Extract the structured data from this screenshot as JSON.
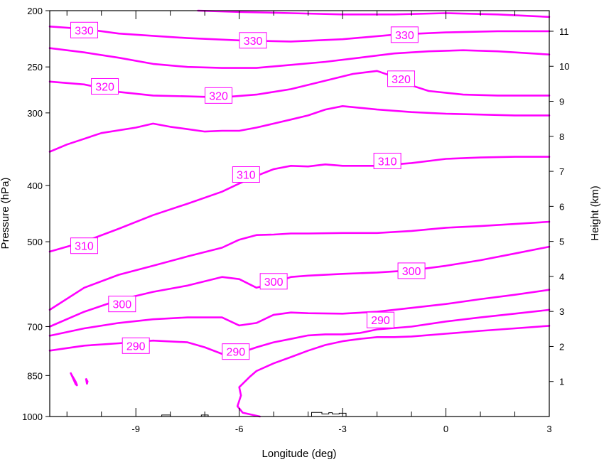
{
  "chart_data": {
    "type": "line",
    "title": "",
    "xlabel": "Longitude (deg)",
    "ylabel": "Pressure (hPa)",
    "y2label": "Height (km)",
    "xlim": [
      -11.5,
      3.0
    ],
    "ylim": [
      1000,
      200
    ],
    "yscale": "log",
    "x_ticks": [
      -9,
      -6,
      -3,
      0,
      3
    ],
    "x_tick_labels": [
      "-9",
      "-6",
      "-3",
      "0",
      "3"
    ],
    "y_ticks": [
      200,
      250,
      300,
      400,
      500,
      700,
      850,
      1000
    ],
    "y_tick_labels": [
      "200",
      "250",
      "300",
      "400",
      "500",
      "700",
      "850",
      "1000"
    ],
    "y2_ticks_km": [
      1,
      2,
      3,
      4,
      5,
      6,
      7,
      8,
      9,
      10,
      11
    ],
    "y2_tick_labels": [
      "1",
      "2",
      "3",
      "4",
      "5",
      "6",
      "7",
      "8",
      "9",
      "10",
      "11"
    ],
    "line_color": "#ff00ff",
    "terrain_color": "#000000",
    "grid": false,
    "series": [
      {
        "level": 330,
        "x": [
          -7.2,
          -6,
          -4.5,
          -3,
          -1.5,
          0,
          1.5,
          3
        ],
        "y": [
          200,
          201,
          202,
          203,
          203,
          202,
          203,
          205
        ]
      },
      {
        "level": 330,
        "x": [
          -11.5,
          -10.5,
          -9.5,
          -8.5,
          -7.5,
          -6,
          -4.5,
          -3,
          -1.5,
          0,
          1.5,
          3
        ],
        "y": [
          213,
          215,
          219,
          221,
          223,
          225,
          226,
          224,
          220,
          218,
          217,
          217
        ]
      },
      {
        "level": 330,
        "x": [
          -11.5,
          -10.5,
          -9.5,
          -8.5,
          -7.5,
          -6.5,
          -5.5,
          -4.5,
          -3.5,
          -2.5,
          -1.5,
          -0.5,
          0.5,
          1.5,
          3
        ],
        "y": [
          232,
          236,
          241,
          247,
          250,
          251,
          251,
          248,
          245,
          241,
          237,
          235,
          234,
          235,
          238
        ]
      },
      {
        "level": 320,
        "x": [
          -11.5,
          -10.5,
          -9.5,
          -8.5,
          -7.5,
          -6.5,
          -5.5,
          -4.5,
          -3.5,
          -2.7,
          -2.0,
          -1.5,
          -1.0,
          -0.5,
          0.5,
          1.5,
          3
        ],
        "y": [
          265,
          268,
          276,
          280,
          281,
          282,
          279,
          273,
          264,
          257,
          254,
          260,
          269,
          275,
          279,
          280,
          280
        ]
      },
      {
        "level": 320,
        "x": [
          -11.5,
          -11.0,
          -10.0,
          -9.0,
          -8.5,
          -8.0,
          -7.5,
          -7.0,
          -6.5,
          -6.0,
          -5.5,
          -5.0,
          -4.5,
          -4.0,
          -3.5,
          -3.0,
          -2.5,
          -2.0,
          -1.0,
          0,
          1.0,
          2.0,
          3.0
        ],
        "y": [
          350,
          340,
          325,
          318,
          313,
          317,
          320,
          323,
          322,
          322,
          318,
          313,
          308,
          303,
          296,
          292,
          294,
          296,
          299,
          301,
          302,
          303,
          303
        ]
      },
      {
        "level": 310,
        "x": [
          -11.5,
          -10.5,
          -9.5,
          -8.5,
          -7.5,
          -6.5,
          -6.0,
          -5.5,
          -5.0,
          -4.5,
          -4.0,
          -3.5,
          -3.0,
          -2.0,
          -1.0,
          0,
          1.0,
          2.0,
          3.0
        ],
        "y": [
          520,
          500,
          475,
          450,
          430,
          410,
          397,
          385,
          375,
          370,
          371,
          368,
          370,
          370,
          366,
          360,
          358,
          357,
          357
        ]
      },
      {
        "level": 310,
        "x": [
          -11.5,
          -10.5,
          -9.5,
          -8.5,
          -7.5,
          -6.5,
          -6.0,
          -5.5,
          -5.0,
          -4.5,
          -4.0,
          -3.0,
          -2.0,
          -1.0,
          0,
          1.0,
          2.0,
          3.0
        ],
        "y": [
          655,
          600,
          570,
          550,
          530,
          512,
          496,
          487,
          486,
          484,
          484,
          483,
          483,
          479,
          473,
          470,
          466,
          462
        ]
      },
      {
        "level": 300,
        "x": [
          -11.5,
          -10.5,
          -9.5,
          -8.5,
          -7.5,
          -6.5,
          -6.0,
          -5.5,
          -5.0,
          -4.5,
          -4.0,
          -3.0,
          -2.0,
          -1.0,
          0,
          1.0,
          2.0,
          3.0
        ],
        "y": [
          700,
          660,
          630,
          610,
          595,
          575,
          580,
          600,
          590,
          575,
          572,
          568,
          565,
          560,
          550,
          538,
          524,
          510
        ]
      },
      {
        "level": 300,
        "x": [
          -11.5,
          -10.5,
          -9.5,
          -8.5,
          -7.5,
          -6.5,
          -6.0,
          -5.5,
          -5.0,
          -4.5,
          -4.0,
          -3.0,
          -2.0,
          -1.0,
          0,
          1.0,
          2.0,
          3.0
        ],
        "y": [
          726,
          705,
          690,
          680,
          675,
          675,
          697,
          690,
          668,
          662,
          664,
          665,
          660,
          650,
          640,
          628,
          617,
          605
        ]
      },
      {
        "level": 290,
        "x": [
          -11.5,
          -10.5,
          -9.5,
          -8.5,
          -7.5,
          -7.0,
          -6.5,
          -6.0,
          -5.5,
          -5.0,
          -4.5,
          -4.0,
          -3.5,
          -3.0,
          -2.5,
          -2.0,
          -1.0,
          0,
          1.0,
          2.0,
          3.0
        ],
        "y": [
          770,
          755,
          748,
          740,
          745,
          760,
          780,
          778,
          760,
          745,
          735,
          725,
          722,
          722,
          718,
          708,
          700,
          686,
          675,
          665,
          655
        ]
      },
      {
        "level": 290,
        "x": [
          -5.4,
          -5.9,
          -6.05,
          -5.95,
          -6.0,
          -5.7,
          -5.5,
          -5.0,
          -4.5,
          -4.0,
          -3.5,
          -3.0,
          -2.5,
          -2.0,
          -1.5,
          -1.0,
          0,
          1.0,
          2.0,
          3.0
        ],
        "y": [
          1000,
          985,
          960,
          920,
          890,
          855,
          835,
          810,
          790,
          770,
          753,
          742,
          735,
          730,
          730,
          728,
          720,
          712,
          705,
          698
        ]
      }
    ],
    "closed_contours": [
      {
        "x": [
          -10.9,
          -10.85,
          -10.75,
          -10.7,
          -10.75,
          -10.9
        ],
        "y": [
          840,
          850,
          870,
          885,
          880,
          840
        ]
      },
      {
        "x": [
          -10.45,
          -10.4,
          -10.42,
          -10.45
        ],
        "y": [
          860,
          870,
          880,
          860
        ]
      }
    ],
    "contour_labels": [
      {
        "text": "330",
        "x": -10.5,
        "y": 216
      },
      {
        "text": "330",
        "x": -5.6,
        "y": 225
      },
      {
        "text": "330",
        "x": -1.2,
        "y": 220
      },
      {
        "text": "320",
        "x": -9.9,
        "y": 270
      },
      {
        "text": "320",
        "x": -6.6,
        "y": 280
      },
      {
        "text": "320",
        "x": -1.3,
        "y": 262
      },
      {
        "text": "310",
        "x": -5.8,
        "y": 383
      },
      {
        "text": "310",
        "x": -1.7,
        "y": 363
      },
      {
        "text": "310",
        "x": -10.5,
        "y": 508
      },
      {
        "text": "300",
        "x": -5.0,
        "y": 585
      },
      {
        "text": "300",
        "x": -1.0,
        "y": 561
      },
      {
        "text": "300",
        "x": -9.4,
        "y": 640
      },
      {
        "text": "290",
        "x": -1.9,
        "y": 682
      },
      {
        "text": "290",
        "x": -9.0,
        "y": 755
      },
      {
        "text": "290",
        "x": -6.1,
        "y": 773
      }
    ],
    "terrain": {
      "x": [
        -8.25,
        -8.25,
        -8.0,
        -8.0,
        -7.1,
        -7.1,
        -6.9,
        -6.9,
        -3.9,
        -3.9,
        -3.6,
        -3.6,
        -3.4,
        -3.4,
        -3.3,
        -3.3,
        -3.1,
        -3.1,
        -2.9,
        -2.9
      ],
      "y": [
        1000,
        994,
        994,
        1000,
        1000,
        994,
        994,
        1000,
        1000,
        984,
        984,
        990,
        990,
        985,
        985,
        990,
        990,
        987,
        987,
        1000
      ]
    }
  }
}
